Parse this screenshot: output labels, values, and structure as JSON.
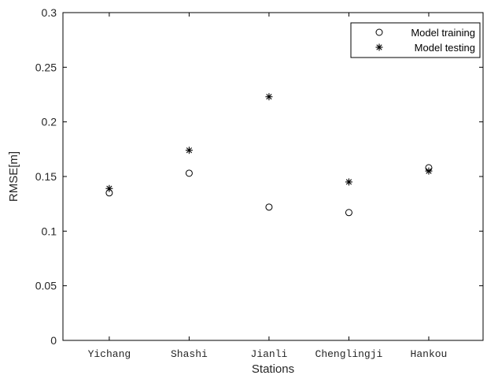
{
  "chart_data": {
    "type": "scatter",
    "categories": [
      "Yichang",
      "Shashi",
      "Jianli",
      "Chenglingji",
      "Hankou"
    ],
    "series": [
      {
        "name": "Model training",
        "marker": "circle",
        "values": [
          0.135,
          0.153,
          0.122,
          0.117,
          0.158
        ]
      },
      {
        "name": "Model testing",
        "marker": "star",
        "values": [
          0.139,
          0.174,
          0.223,
          0.145,
          0.155
        ]
      }
    ],
    "title": "",
    "xlabel": "Stations",
    "ylabel": "RMSE[m]",
    "ylim": [
      0,
      0.3
    ],
    "yticks": [
      "0",
      "0.05",
      "0.1",
      "0.15",
      "0.2",
      "0.25",
      "0.3"
    ],
    "ytick_values": [
      0,
      0.05,
      0.1,
      0.15,
      0.2,
      0.25,
      0.3
    ],
    "grid": false,
    "legend_position": "top-right",
    "color": "#000000"
  }
}
